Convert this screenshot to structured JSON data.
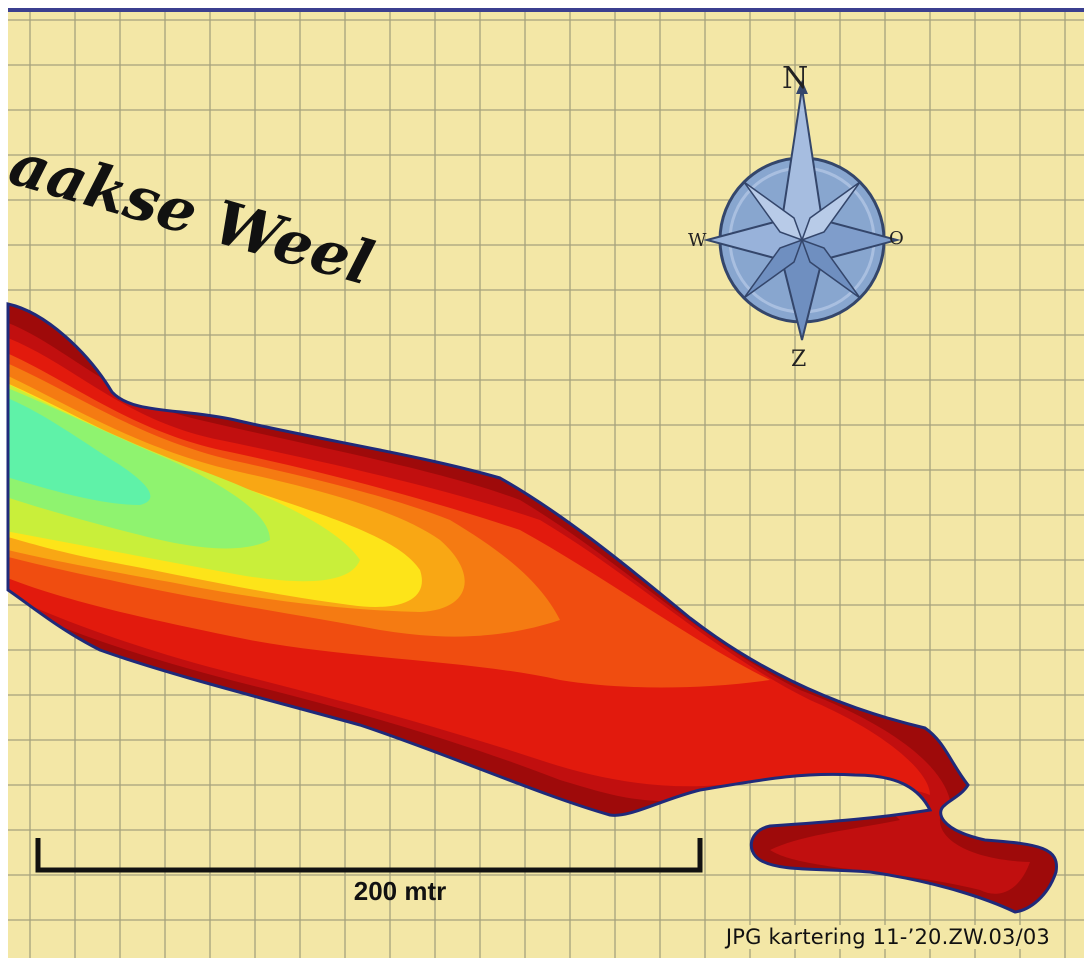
{
  "map": {
    "lake_name_fragment": "aakse Weel",
    "scale_label": "200 mtr",
    "credit": "JPG kartering 11-’20.ZW.03/03",
    "compass": {
      "north": "N",
      "south": "Z",
      "west": "W",
      "east": "O"
    },
    "colors": {
      "background": "#f3e7a6",
      "grid": "#8c8a70",
      "frame_top": "#3b3f8f",
      "shoreline": "#1f2a7a",
      "depth_bands": [
        "#9e0a0a",
        "#c10f0f",
        "#e21a0d",
        "#f04d10",
        "#f57b12",
        "#f9a714",
        "#fde419",
        "#c9ef3a",
        "#8ff36f",
        "#5ff2a8"
      ],
      "compass_fill": "#88a6cf",
      "compass_edge": "#34466b"
    }
  }
}
